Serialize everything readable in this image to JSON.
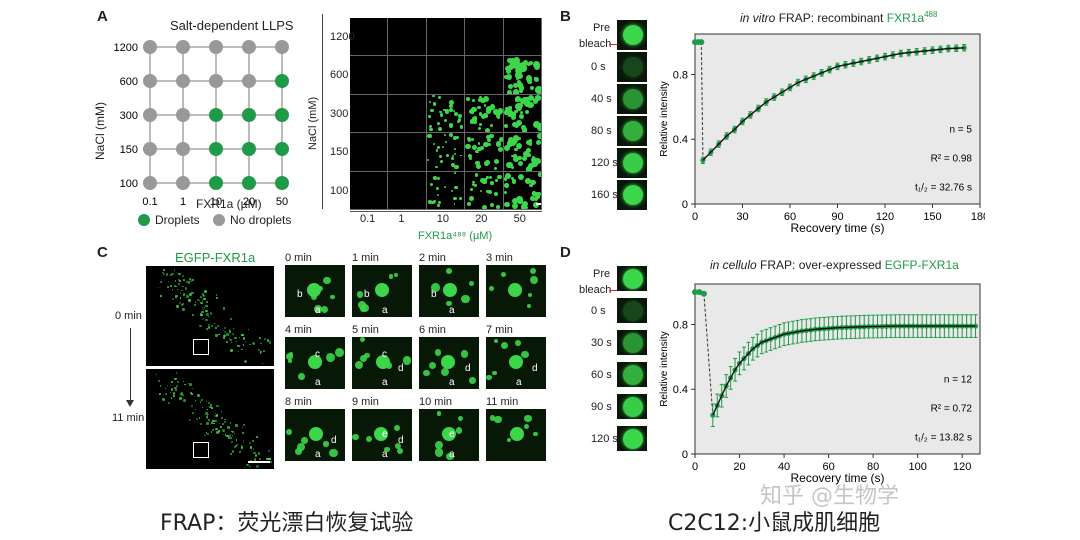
{
  "panelA": {
    "label": "A",
    "grid_title": "Salt-dependent LLPS",
    "nacl_axis": "NaCl (mM)",
    "fxr_axis": "FXR1a (µM)",
    "nacl_levels": [
      "1200",
      "600",
      "300",
      "150",
      "100"
    ],
    "fxr_levels": [
      "0.1",
      "1",
      "10",
      "20",
      "50"
    ],
    "droplets": [
      [
        0,
        0,
        0,
        0,
        0
      ],
      [
        0,
        0,
        0,
        0,
        1
      ],
      [
        0,
        0,
        1,
        1,
        1
      ],
      [
        0,
        0,
        1,
        1,
        1
      ],
      [
        0,
        0,
        1,
        1,
        1
      ]
    ],
    "legend_droplets": "Droplets",
    "legend_none": "No droplets",
    "image_xlabel": "FXR1a⁴⁸⁸ (µM)",
    "colors": {
      "droplet": "#1f9a48",
      "none": "#999999"
    }
  },
  "panelB": {
    "label": "B",
    "title_italic": "in vitro",
    "title_rest": "FRAP: recombinant",
    "title_green": "FXR1a",
    "title_sup": "488",
    "strip_labels": [
      "Pre",
      "bleach",
      "0 s",
      "40 s",
      "80 s",
      "120 s",
      "160 s"
    ],
    "stats": [
      "n = 5",
      "R² = 0.98",
      "t₁/₂ = 32.76 s"
    ]
  },
  "panelC": {
    "label": "C",
    "title": "EGFP-FXR1a",
    "time_top": "0 min",
    "time_bottom": "11 min",
    "tiles": [
      {
        "time": "0 min",
        "letters": [
          "b",
          "a"
        ]
      },
      {
        "time": "1 min",
        "letters": [
          "b",
          "a"
        ]
      },
      {
        "time": "2 min",
        "letters": [
          "b",
          "a"
        ]
      },
      {
        "time": "3 min",
        "letters": []
      },
      {
        "time": "4 min",
        "letters": [
          "c",
          "a"
        ]
      },
      {
        "time": "5 min",
        "letters": [
          "c",
          "a",
          "d"
        ]
      },
      {
        "time": "6 min",
        "letters": [
          "a",
          "d"
        ]
      },
      {
        "time": "7 min",
        "letters": [
          "a",
          "d"
        ]
      },
      {
        "time": "8 min",
        "letters": [
          "d",
          "a"
        ]
      },
      {
        "time": "9 min",
        "letters": [
          "e",
          "d",
          "a"
        ]
      },
      {
        "time": "10 min",
        "letters": [
          "e",
          "a"
        ]
      },
      {
        "time": "11 min",
        "letters": []
      }
    ]
  },
  "panelD": {
    "label": "D",
    "title_italic": "in cellulo",
    "title_rest": "FRAP: over-expressed",
    "title_green": "EGFP-FXR1a",
    "strip_labels": [
      "Pre",
      "bleach",
      "0 s",
      "30 s",
      "60 s",
      "90 s",
      "120 s"
    ],
    "stats": [
      "n = 12",
      "R² = 0.72",
      "t₁/₂ = 13.82 s"
    ]
  },
  "captions": {
    "left": "FRAP：荧光漂白恢复试验",
    "right": "C2C12:小鼠成肌细胞",
    "watermark": "知乎 @生物学"
  },
  "chart_data": [
    {
      "type": "line",
      "title": "in vitro FRAP: recombinant FXR1a488",
      "xlabel": "Recovery time (s)",
      "ylabel": "Relative intensity",
      "xlim": [
        0,
        180
      ],
      "ylim": [
        0,
        1.05
      ],
      "xticks": [
        0,
        30,
        60,
        90,
        120,
        150,
        180
      ],
      "yticks": [
        0,
        0.4,
        0.8
      ],
      "pre": [
        [
          0,
          1.0
        ],
        [
          2,
          1.0
        ],
        [
          4,
          1.0
        ]
      ],
      "x": [
        5,
        10,
        15,
        20,
        25,
        30,
        35,
        40,
        45,
        50,
        55,
        60,
        65,
        70,
        75,
        80,
        85,
        90,
        95,
        100,
        105,
        110,
        115,
        120,
        125,
        130,
        135,
        140,
        145,
        150,
        155,
        160,
        165,
        170
      ],
      "y": [
        0.27,
        0.32,
        0.37,
        0.42,
        0.46,
        0.51,
        0.55,
        0.59,
        0.63,
        0.66,
        0.69,
        0.72,
        0.75,
        0.77,
        0.79,
        0.81,
        0.83,
        0.85,
        0.86,
        0.87,
        0.88,
        0.89,
        0.9,
        0.91,
        0.92,
        0.93,
        0.935,
        0.94,
        0.945,
        0.95,
        0.955,
        0.96,
        0.962,
        0.965
      ],
      "err": 0.02
    },
    {
      "type": "line",
      "title": "in cellulo FRAP: over-expressed EGFP-FXR1a",
      "xlabel": "Recovery time (s)",
      "ylabel": "Relative intensity",
      "xlim": [
        0,
        128
      ],
      "ylim": [
        0,
        1.05
      ],
      "xticks": [
        0,
        20,
        40,
        60,
        80,
        100,
        120
      ],
      "yticks": [
        0,
        0.4,
        0.8
      ],
      "pre": [
        [
          0,
          1.0
        ],
        [
          2,
          1.0
        ],
        [
          4,
          0.99
        ]
      ],
      "x": [
        8,
        10,
        12,
        14,
        16,
        18,
        20,
        22,
        24,
        26,
        28,
        30,
        32,
        34,
        36,
        38,
        40,
        42,
        44,
        46,
        48,
        50,
        52,
        54,
        56,
        58,
        60,
        62,
        64,
        66,
        68,
        70,
        72,
        74,
        76,
        78,
        80,
        82,
        84,
        86,
        88,
        90,
        92,
        94,
        96,
        98,
        100,
        102,
        104,
        106,
        108,
        110,
        112,
        114,
        116,
        118,
        120,
        122,
        124,
        126
      ],
      "y": [
        0.24,
        0.3,
        0.36,
        0.42,
        0.47,
        0.52,
        0.56,
        0.59,
        0.62,
        0.65,
        0.67,
        0.69,
        0.7,
        0.71,
        0.72,
        0.73,
        0.74,
        0.745,
        0.75,
        0.755,
        0.76,
        0.763,
        0.766,
        0.77,
        0.772,
        0.774,
        0.776,
        0.778,
        0.78,
        0.781,
        0.782,
        0.783,
        0.784,
        0.785,
        0.786,
        0.787,
        0.787,
        0.788,
        0.788,
        0.789,
        0.789,
        0.79,
        0.79,
        0.79,
        0.79,
        0.79,
        0.79,
        0.79,
        0.79,
        0.79,
        0.79,
        0.79,
        0.79,
        0.79,
        0.79,
        0.79,
        0.79,
        0.79,
        0.79,
        0.79
      ],
      "err": 0.07
    }
  ]
}
